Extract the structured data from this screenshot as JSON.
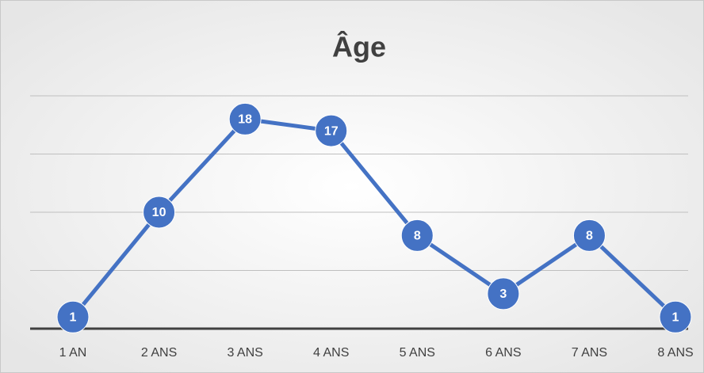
{
  "chart_data": {
    "type": "line",
    "title": "Âge",
    "categories": [
      "1 AN",
      "2 ANS",
      "3 ANS",
      "4 ANS",
      "5 ANS",
      "6 ANS",
      "7 ANS",
      "8 ANS"
    ],
    "values": [
      1,
      10,
      18,
      17,
      8,
      3,
      8,
      1
    ],
    "color": "#4472c4",
    "ylim": [
      0,
      20
    ],
    "yticks": [
      0,
      5,
      10,
      15,
      20
    ],
    "grid": true
  }
}
